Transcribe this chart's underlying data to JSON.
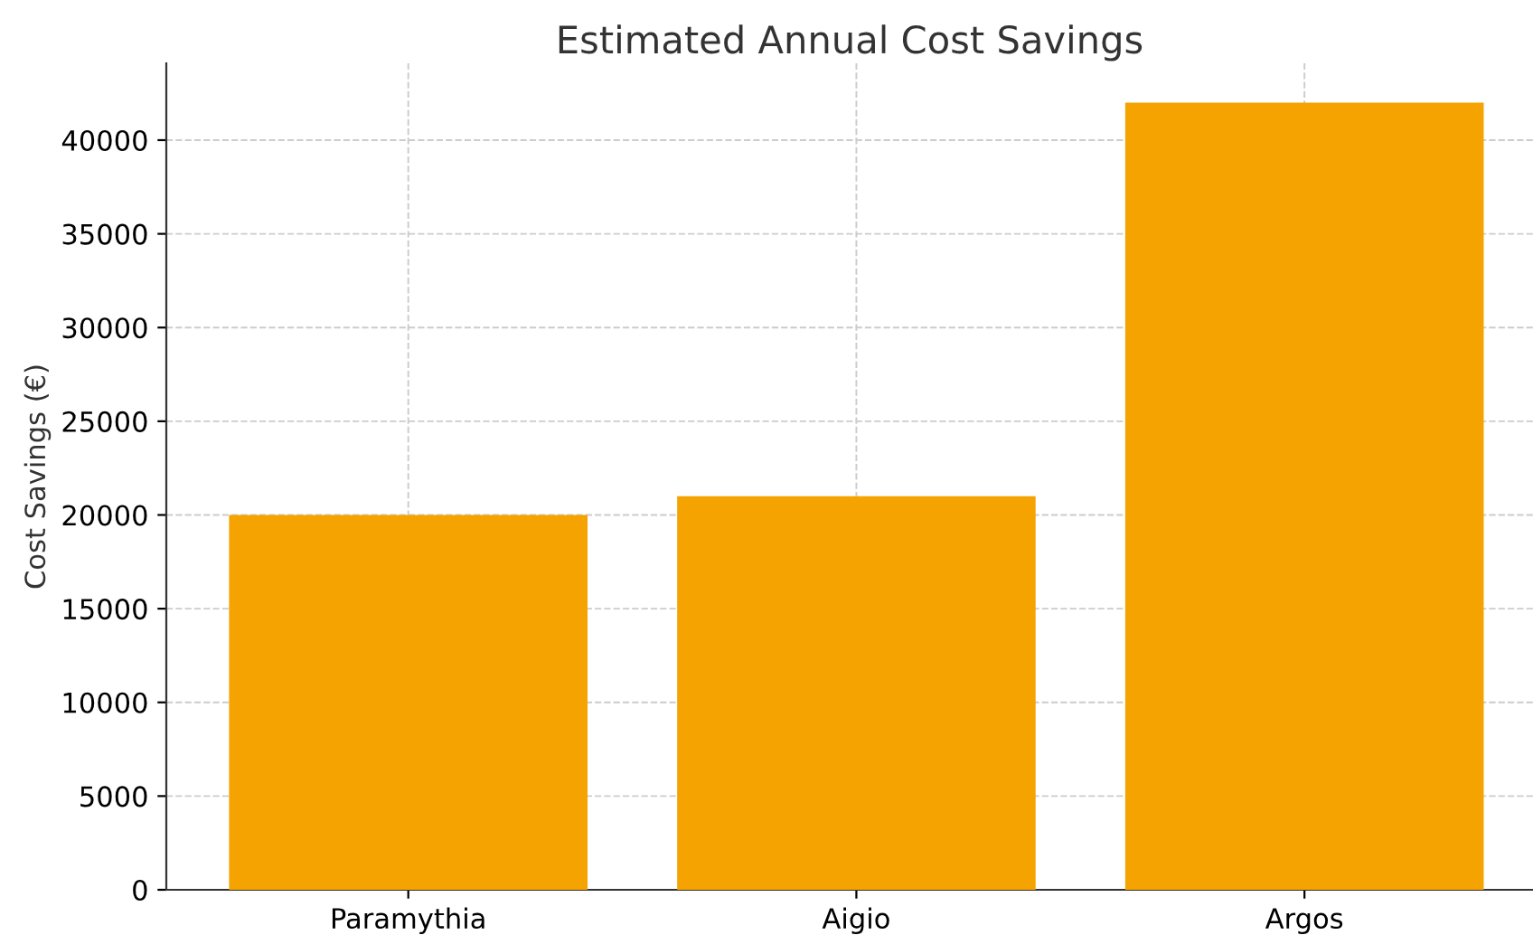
{
  "chart_data": {
    "type": "bar",
    "title": "Estimated Annual Cost Savings",
    "ylabel": "Cost Savings (€)",
    "categories": [
      "Paramythia",
      "Aigio",
      "Argos"
    ],
    "values": [
      20000,
      21000,
      42000
    ],
    "color": "#f4a300",
    "ylim": [
      0,
      44100
    ],
    "yticks": [
      0,
      5000,
      10000,
      15000,
      20000,
      25000,
      30000,
      35000,
      40000
    ],
    "grid": true
  }
}
